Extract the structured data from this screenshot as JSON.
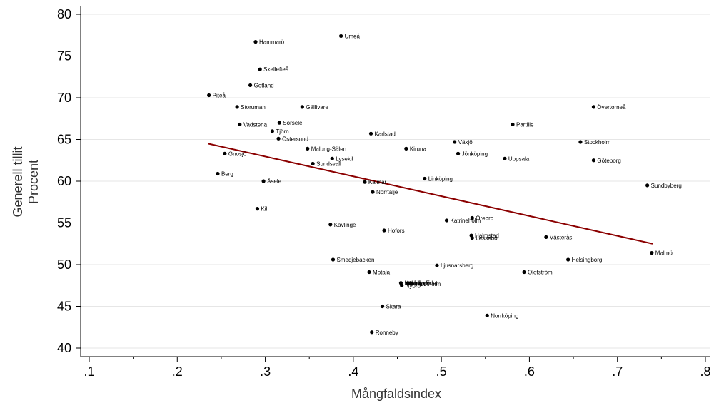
{
  "chart_data": {
    "type": "scatter",
    "xlabel": "Mångfaldsindex",
    "ylabel": "Generell tillit",
    "ylabel2": "Procent",
    "xlim": [
      0.1,
      0.8
    ],
    "ylim": [
      40,
      80
    ],
    "xticks": [
      0.1,
      0.2,
      0.3,
      0.4,
      0.5,
      0.6,
      0.7,
      0.8
    ],
    "xtick_labels": [
      ".1",
      ".2",
      ".3",
      ".4",
      ".5",
      ".6",
      ".7",
      ".8"
    ],
    "yticks": [
      40,
      45,
      50,
      55,
      60,
      65,
      70,
      75,
      80
    ],
    "ytick_labels": [
      "40",
      "45",
      "50",
      "55",
      "60",
      "65",
      "70",
      "75",
      "80"
    ],
    "grid": "horizontal",
    "fit_line": {
      "x": [
        0.235,
        0.74
      ],
      "y": [
        64.5,
        52.5
      ],
      "color": "#8b0000"
    },
    "points": [
      {
        "label": "Umeå",
        "x": 0.386,
        "y": 77.4
      },
      {
        "label": "Hammarö",
        "x": 0.289,
        "y": 76.7
      },
      {
        "label": "Skellefteå",
        "x": 0.294,
        "y": 73.4
      },
      {
        "label": "Gotland",
        "x": 0.283,
        "y": 71.5
      },
      {
        "label": "Piteå",
        "x": 0.236,
        "y": 70.3
      },
      {
        "label": "Storuman",
        "x": 0.268,
        "y": 68.9
      },
      {
        "label": "Gällivare",
        "x": 0.342,
        "y": 68.9
      },
      {
        "label": "Övertorneå",
        "x": 0.673,
        "y": 68.9
      },
      {
        "label": "Vadstena",
        "x": 0.271,
        "y": 66.8
      },
      {
        "label": "Sorsele",
        "x": 0.316,
        "y": 67.0
      },
      {
        "label": "Partille",
        "x": 0.581,
        "y": 66.8
      },
      {
        "label": "Tjörn",
        "x": 0.308,
        "y": 66.0
      },
      {
        "label": "Karlstad",
        "x": 0.42,
        "y": 65.7
      },
      {
        "label": "Östersund",
        "x": 0.315,
        "y": 65.1
      },
      {
        "label": "Växjö",
        "x": 0.515,
        "y": 64.7
      },
      {
        "label": "Stockholm",
        "x": 0.658,
        "y": 64.7
      },
      {
        "label": "Malung-Sälen",
        "x": 0.348,
        "y": 63.9
      },
      {
        "label": "Kiruna",
        "x": 0.46,
        "y": 63.9
      },
      {
        "label": "Gnosjö",
        "x": 0.254,
        "y": 63.3
      },
      {
        "label": "Jönköping",
        "x": 0.519,
        "y": 63.3
      },
      {
        "label": "Lysekil",
        "x": 0.376,
        "y": 62.7
      },
      {
        "label": "Uppsala",
        "x": 0.572,
        "y": 62.7
      },
      {
        "label": "Göteborg",
        "x": 0.673,
        "y": 62.5
      },
      {
        "label": "Sundsvall",
        "x": 0.354,
        "y": 62.1
      },
      {
        "label": "Berg",
        "x": 0.246,
        "y": 60.9
      },
      {
        "label": "Linköping",
        "x": 0.481,
        "y": 60.3
      },
      {
        "label": "Åsele",
        "x": 0.298,
        "y": 60.0
      },
      {
        "label": "Kalmar",
        "x": 0.413,
        "y": 59.9
      },
      {
        "label": "Sundbyberg",
        "x": 0.734,
        "y": 59.5
      },
      {
        "label": "Norrtälje",
        "x": 0.422,
        "y": 58.7
      },
      {
        "label": "Kil",
        "x": 0.291,
        "y": 56.7
      },
      {
        "label": "Örebro",
        "x": 0.535,
        "y": 55.6
      },
      {
        "label": "Katrineholm",
        "x": 0.506,
        "y": 55.3
      },
      {
        "label": "Kävlinge",
        "x": 0.374,
        "y": 54.8
      },
      {
        "label": "Hofors",
        "x": 0.435,
        "y": 54.1
      },
      {
        "label": "Halmstad",
        "x": 0.534,
        "y": 53.5
      },
      {
        "label": "Lessebo",
        "x": 0.535,
        "y": 53.2
      },
      {
        "label": "Västerås",
        "x": 0.619,
        "y": 53.3
      },
      {
        "label": "Malmö",
        "x": 0.739,
        "y": 51.4
      },
      {
        "label": "Smedjebacken",
        "x": 0.377,
        "y": 50.6
      },
      {
        "label": "Helsingborg",
        "x": 0.644,
        "y": 50.6
      },
      {
        "label": "Ljusnarsberg",
        "x": 0.495,
        "y": 49.9
      },
      {
        "label": "Motala",
        "x": 0.418,
        "y": 49.1
      },
      {
        "label": "Olofström",
        "x": 0.594,
        "y": 49.1
      },
      {
        "label": "Haninge",
        "x": 0.454,
        "y": 47.8
      },
      {
        "label": "Lidingö",
        "x": 0.462,
        "y": 47.8
      },
      {
        "label": "Lilla Edet",
        "x": 0.465,
        "y": 47.8
      },
      {
        "label": "Mölnholm",
        "x": 0.467,
        "y": 47.7
      },
      {
        "label": "Nybro",
        "x": 0.455,
        "y": 47.5
      },
      {
        "label": "Skara",
        "x": 0.433,
        "y": 45.0
      },
      {
        "label": "Norrköping",
        "x": 0.552,
        "y": 43.9
      },
      {
        "label": "Ronneby",
        "x": 0.421,
        "y": 41.9
      }
    ]
  }
}
